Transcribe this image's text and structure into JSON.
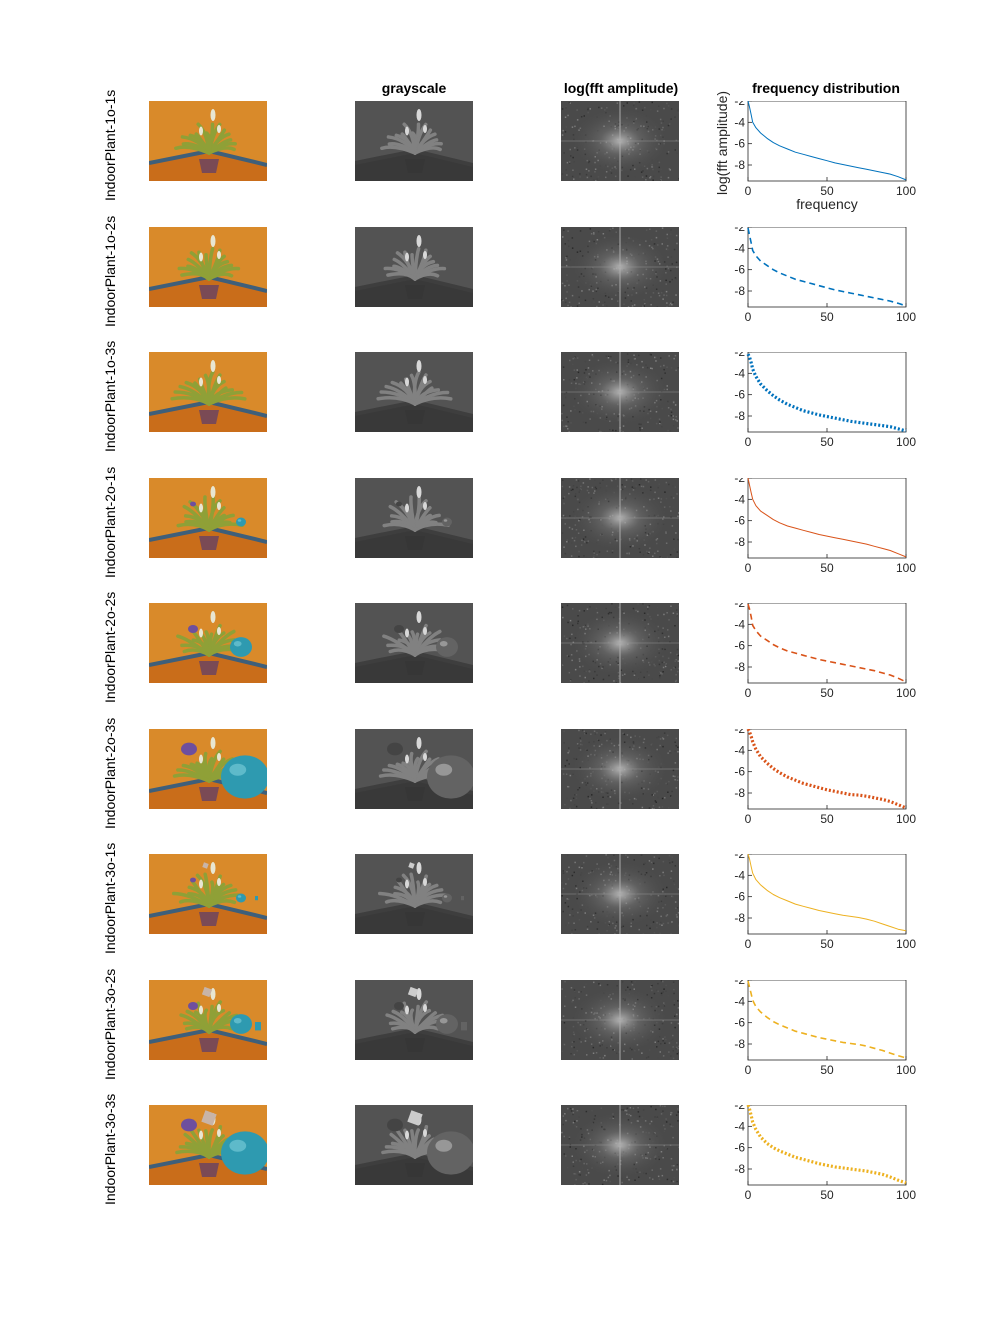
{
  "columns": {
    "grayscale": "grayscale",
    "fft": "log(fft amplitude)",
    "freq": "frequency distribution"
  },
  "first_plot": {
    "ylabel": "log(fft amplitude)",
    "xlabel": "frequency"
  },
  "axes": {
    "xlim": [
      0,
      100
    ],
    "ylim": [
      -9.5,
      -2
    ],
    "xticks": [
      "0",
      "50",
      "100"
    ],
    "yticks": [
      "-2",
      "-4",
      "-6",
      "-8"
    ]
  },
  "colors": {
    "blue": "#0072BD",
    "orange": "#D95319",
    "yellow": "#EDB120",
    "wall": "#D98A2A",
    "floor": "#C96D1A",
    "baseboard": "#3E5F7A",
    "pot": "#7A4A55",
    "leaf": "#8FA037",
    "flower": "#E8E6D2",
    "teal_object": "#2E9AB0",
    "purple_object": "#6E4F9E",
    "box_object": "#C8B4A8"
  },
  "rows": [
    {
      "label": "IndoorPlant-1o-1s",
      "objects": 1,
      "scale": 1
    },
    {
      "label": "IndoorPlant-1o-2s",
      "objects": 1,
      "scale": 2
    },
    {
      "label": "IndoorPlant-1o-3s",
      "objects": 1,
      "scale": 3
    },
    {
      "label": "IndoorPlant-2o-1s",
      "objects": 2,
      "scale": 1
    },
    {
      "label": "IndoorPlant-2o-2s",
      "objects": 2,
      "scale": 2
    },
    {
      "label": "IndoorPlant-2o-3s",
      "objects": 2,
      "scale": 3
    },
    {
      "label": "IndoorPlant-3o-1s",
      "objects": 3,
      "scale": 1
    },
    {
      "label": "IndoorPlant-3o-2s",
      "objects": 3,
      "scale": 2
    },
    {
      "label": "IndoorPlant-3o-3s",
      "objects": 3,
      "scale": 3
    }
  ],
  "chart_data": {
    "type": "line",
    "x": [
      0,
      1,
      2,
      3,
      5,
      8,
      12,
      16,
      20,
      25,
      30,
      35,
      40,
      45,
      50,
      55,
      60,
      65,
      70,
      75,
      80,
      85,
      90,
      95,
      100
    ],
    "xlim": [
      0,
      100
    ],
    "ylim": [
      -9.5,
      -2
    ],
    "series": [
      {
        "row": 0,
        "color": "blue",
        "style": "solid",
        "values": [
          -2.0,
          -2.6,
          -3.3,
          -4.0,
          -4.5,
          -5.0,
          -5.5,
          -5.9,
          -6.2,
          -6.5,
          -6.8,
          -7.0,
          -7.2,
          -7.4,
          -7.6,
          -7.8,
          -7.95,
          -8.1,
          -8.25,
          -8.4,
          -8.55,
          -8.7,
          -8.85,
          -9.1,
          -9.4
        ]
      },
      {
        "row": 1,
        "color": "blue",
        "style": "dashed",
        "values": [
          -2.1,
          -2.8,
          -3.5,
          -4.2,
          -4.7,
          -5.2,
          -5.6,
          -6.0,
          -6.3,
          -6.6,
          -6.9,
          -7.1,
          -7.3,
          -7.5,
          -7.7,
          -7.9,
          -8.05,
          -8.2,
          -8.35,
          -8.5,
          -8.65,
          -8.8,
          -8.95,
          -9.15,
          -9.4
        ]
      },
      {
        "row": 2,
        "color": "blue",
        "style": "dotted",
        "values": [
          -2.2,
          -2.5,
          -3.0,
          -3.6,
          -4.3,
          -5.0,
          -5.6,
          -6.1,
          -6.5,
          -6.9,
          -7.2,
          -7.5,
          -7.7,
          -7.9,
          -8.05,
          -8.2,
          -8.35,
          -8.5,
          -8.6,
          -8.7,
          -8.8,
          -8.9,
          -9.0,
          -9.2,
          -9.4
        ]
      },
      {
        "row": 3,
        "color": "orange",
        "style": "solid",
        "values": [
          -2.0,
          -2.7,
          -3.4,
          -4.0,
          -4.6,
          -5.1,
          -5.5,
          -5.9,
          -6.2,
          -6.5,
          -6.7,
          -6.9,
          -7.1,
          -7.3,
          -7.45,
          -7.6,
          -7.75,
          -7.9,
          -8.05,
          -8.2,
          -8.4,
          -8.6,
          -8.8,
          -9.1,
          -9.4
        ]
      },
      {
        "row": 4,
        "color": "orange",
        "style": "dashed",
        "values": [
          -2.1,
          -2.6,
          -3.3,
          -4.1,
          -4.6,
          -5.1,
          -5.5,
          -5.9,
          -6.2,
          -6.5,
          -6.7,
          -6.9,
          -7.1,
          -7.3,
          -7.45,
          -7.6,
          -7.75,
          -7.9,
          -8.05,
          -8.2,
          -8.35,
          -8.55,
          -8.75,
          -9.05,
          -9.4
        ]
      },
      {
        "row": 5,
        "color": "orange",
        "style": "dotted",
        "values": [
          -2.0,
          -2.3,
          -2.7,
          -3.2,
          -3.9,
          -4.6,
          -5.2,
          -5.7,
          -6.1,
          -6.5,
          -6.8,
          -7.1,
          -7.3,
          -7.5,
          -7.7,
          -7.85,
          -8.0,
          -8.15,
          -8.2,
          -8.3,
          -8.45,
          -8.6,
          -8.8,
          -9.1,
          -9.4
        ]
      },
      {
        "row": 6,
        "color": "yellow",
        "style": "solid",
        "values": [
          -2.0,
          -2.5,
          -3.2,
          -3.8,
          -4.4,
          -4.9,
          -5.4,
          -5.8,
          -6.1,
          -6.4,
          -6.7,
          -6.9,
          -7.1,
          -7.3,
          -7.45,
          -7.6,
          -7.75,
          -7.85,
          -7.95,
          -8.1,
          -8.3,
          -8.55,
          -8.8,
          -9.05,
          -9.2
        ]
      },
      {
        "row": 7,
        "color": "yellow",
        "style": "dashed",
        "values": [
          -2.1,
          -2.7,
          -3.3,
          -3.9,
          -4.5,
          -5.0,
          -5.5,
          -5.9,
          -6.2,
          -6.5,
          -6.8,
          -7.0,
          -7.2,
          -7.4,
          -7.55,
          -7.7,
          -7.85,
          -7.95,
          -8.05,
          -8.2,
          -8.4,
          -8.6,
          -8.85,
          -9.1,
          -9.3
        ]
      },
      {
        "row": 8,
        "color": "yellow",
        "style": "dotted",
        "values": [
          -2.0,
          -2.4,
          -3.0,
          -3.6,
          -4.3,
          -5.0,
          -5.6,
          -6.0,
          -6.3,
          -6.6,
          -6.9,
          -7.1,
          -7.3,
          -7.5,
          -7.65,
          -7.8,
          -7.9,
          -8.0,
          -8.1,
          -8.2,
          -8.35,
          -8.5,
          -8.75,
          -9.05,
          -9.3
        ]
      }
    ]
  }
}
